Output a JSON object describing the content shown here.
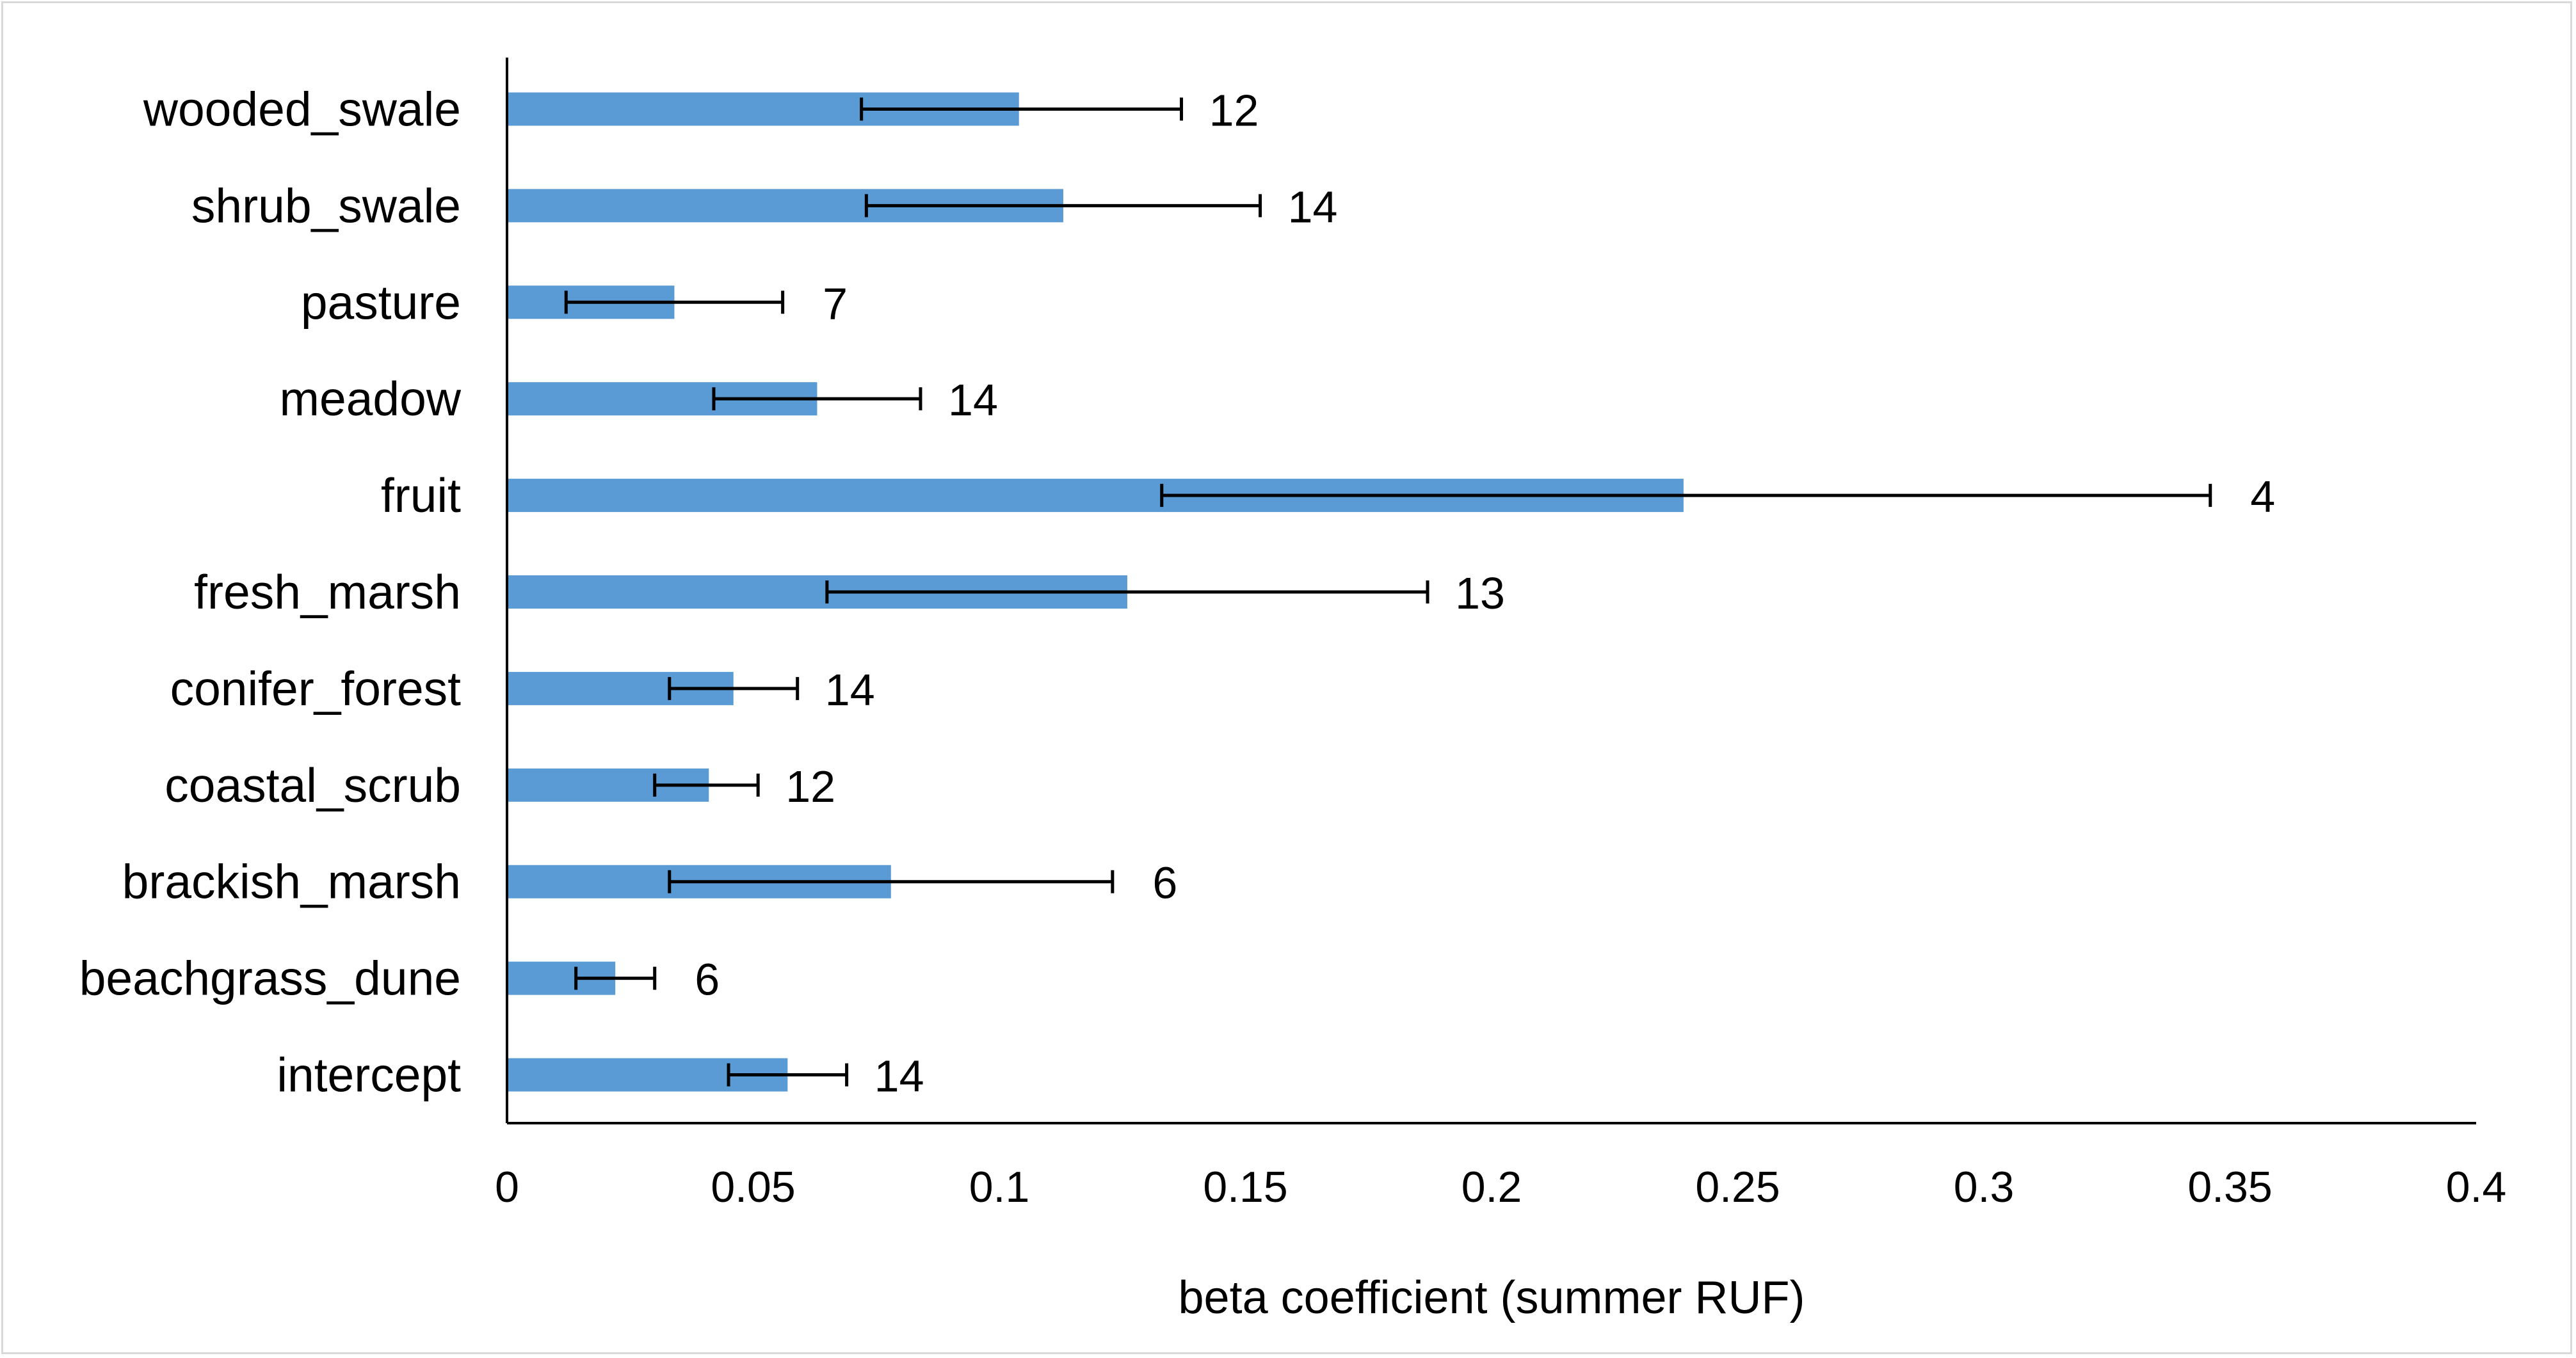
{
  "chart_data": {
    "type": "bar",
    "orientation": "horizontal",
    "categories": [
      "wooded_swale",
      "shrub_swale",
      "pasture",
      "meadow",
      "fruit",
      "fresh_marsh",
      "conifer_forest",
      "coastal_scrub",
      "brackish_marsh",
      "beachgrass_dune",
      "intercept"
    ],
    "values": [
      0.104,
      0.113,
      0.034,
      0.063,
      0.239,
      0.126,
      0.046,
      0.041,
      0.078,
      0.022,
      0.057
    ],
    "error_low": [
      0.072,
      0.073,
      0.012,
      0.042,
      0.133,
      0.065,
      0.033,
      0.03,
      0.033,
      0.014,
      0.045
    ],
    "error_high": [
      0.137,
      0.153,
      0.056,
      0.084,
      0.346,
      0.187,
      0.059,
      0.051,
      0.123,
      0.03,
      0.069
    ],
    "data_labels": [
      "12",
      "14",
      "7",
      "14",
      "4",
      "13",
      "14",
      "12",
      "6",
      "6",
      "14"
    ],
    "xlabel": "beta coefficient (summer RUF)",
    "ylabel": "",
    "xlim": [
      0,
      0.4
    ],
    "xticks": [
      0,
      0.05,
      0.1,
      0.15,
      0.2,
      0.25,
      0.3,
      0.35,
      0.4
    ],
    "xtick_labels": [
      "0",
      "0.05",
      "0.1",
      "0.15",
      "0.2",
      "0.25",
      "0.3",
      "0.35",
      "0.4"
    ],
    "bar_color": "#5b9bd5",
    "error_bar_color": "#000000",
    "grid": false,
    "legend": "none"
  }
}
